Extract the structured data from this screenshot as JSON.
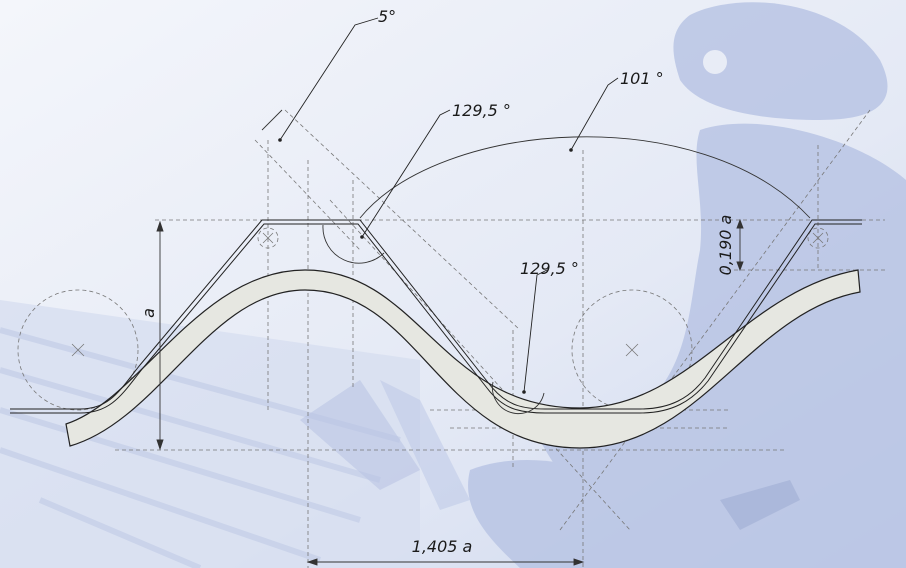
{
  "labels": {
    "draft_angle": "5°",
    "crest_angle": "129,5 °",
    "arc_angle": "101 °",
    "trough_angle": "129,5 °",
    "height_a": "a",
    "offset": "0,190 a",
    "pitch": "1,405 a"
  },
  "colors": {
    "background": "#eef1f8",
    "photo_tint": "#b9c5e4",
    "profile_fill": "#e6e7e1",
    "line": "#222222",
    "dashed": "#777777"
  }
}
